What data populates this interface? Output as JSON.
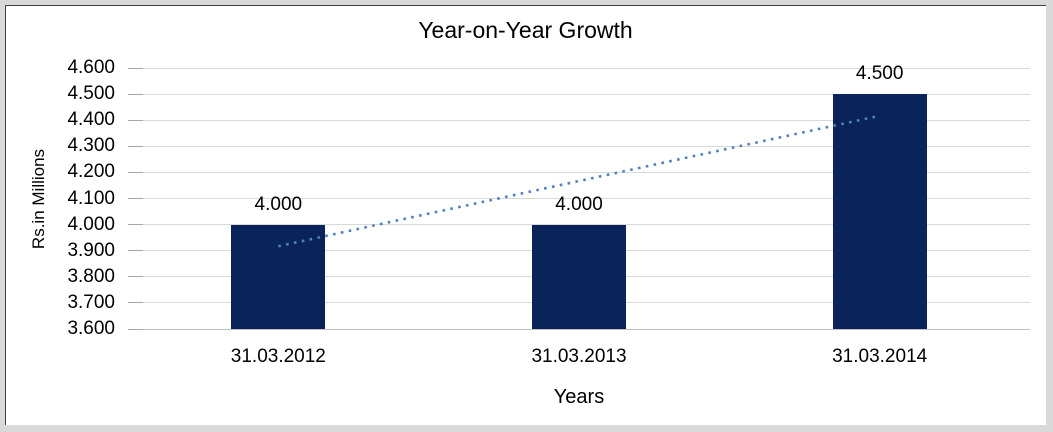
{
  "frame": {
    "outer_border_color": "#d9d9d9",
    "inner_line_color": "#404040",
    "background": "#ffffff"
  },
  "chart_data": {
    "type": "bar",
    "title": "Year-on-Year Growth",
    "xlabel": "Years",
    "ylabel": "Rs.in Millions",
    "categories": [
      "31.03.2012",
      "31.03.2013",
      "31.03.2014"
    ],
    "series": [
      {
        "color": "#0a2459",
        "values": [
          4.0,
          4.0,
          4.5
        ],
        "labels": [
          "4.000",
          "4.000",
          "4.500"
        ]
      }
    ],
    "ylim": [
      3.6,
      4.6
    ],
    "ytick_step": 0.1,
    "ytick_labels": [
      "3.600",
      "3.700",
      "3.800",
      "3.900",
      "4.000",
      "4.100",
      "4.200",
      "4.300",
      "4.400",
      "4.500",
      "4.600"
    ],
    "grid": true,
    "gridline_color": "#d9d9d9",
    "tick_mark_color": "#a6a6a6",
    "axis_line_color": "#bfbfbf",
    "legend": "none",
    "trendline": {
      "type": "linear",
      "style": "dotted",
      "color": "#4f81bd",
      "start_value": 3.917,
      "end_value": 4.417
    }
  }
}
